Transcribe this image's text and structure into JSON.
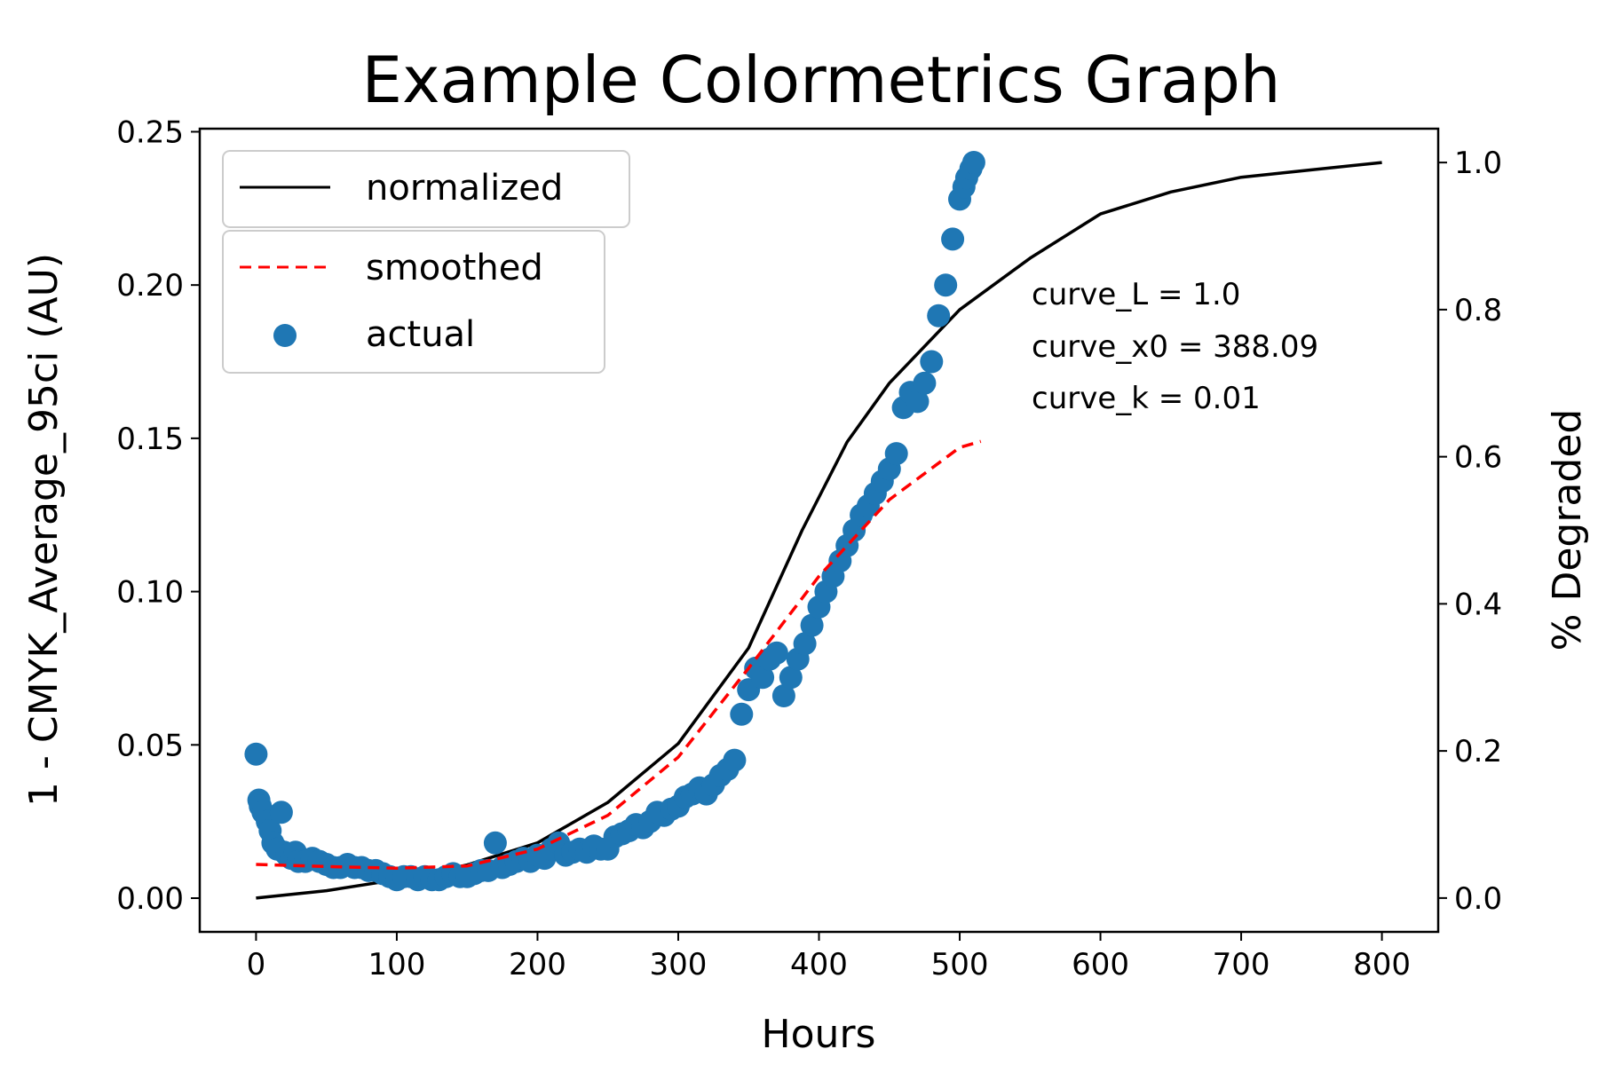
{
  "chart_data": {
    "type": "scatter",
    "title": "Example Colormetrics Graph",
    "xlabel": "Hours",
    "ylabel": "1 - CMYK_Average_95ci (AU)",
    "y2label": "% Degraded",
    "xlim": [
      -40,
      840
    ],
    "ylim": [
      -0.011,
      0.251
    ],
    "y2lim": [
      -0.046,
      1.046
    ],
    "xticks": [
      0,
      100,
      200,
      300,
      400,
      500,
      600,
      700,
      800
    ],
    "xtick_labels": [
      "0",
      "100",
      "200",
      "300",
      "400",
      "500",
      "600",
      "700",
      "800"
    ],
    "yticks": [
      0.0,
      0.05,
      0.1,
      0.15,
      0.2,
      0.25
    ],
    "ytick_labels": [
      "0.00",
      "0.05",
      "0.10",
      "0.15",
      "0.20",
      "0.25"
    ],
    "y2ticks": [
      0.0,
      0.2,
      0.4,
      0.6,
      0.8,
      1.0
    ],
    "y2tick_labels": [
      "0.0",
      "0.2",
      "0.4",
      "0.6",
      "0.8",
      "1.0"
    ],
    "grid": false,
    "colors": {
      "normalized": "#000000",
      "smoothed": "#ff0000",
      "actual": "#1f77b4"
    },
    "legend": {
      "placement": "upper-left",
      "entries": [
        "normalized",
        "smoothed",
        "actual"
      ]
    },
    "series": [
      {
        "name": "normalized",
        "style": "solid-line",
        "axis": "right",
        "x": [
          0,
          50,
          100,
          150,
          200,
          250,
          300,
          350,
          388,
          420,
          450,
          500,
          550,
          600,
          650,
          700,
          750,
          800
        ],
        "y": [
          0.0,
          0.01,
          0.025,
          0.045,
          0.075,
          0.13,
          0.21,
          0.34,
          0.5,
          0.62,
          0.7,
          0.8,
          0.87,
          0.93,
          0.96,
          0.98,
          0.99,
          1.0
        ]
      },
      {
        "name": "smoothed",
        "style": "dashed-line",
        "axis": "left",
        "x": [
          0,
          50,
          100,
          150,
          200,
          250,
          300,
          350,
          400,
          450,
          500,
          515
        ],
        "y": [
          0.011,
          0.0103,
          0.0098,
          0.0105,
          0.016,
          0.027,
          0.046,
          0.075,
          0.105,
          0.13,
          0.147,
          0.149
        ]
      },
      {
        "name": "actual",
        "style": "markers",
        "axis": "left",
        "x": [
          0,
          2,
          3,
          5,
          8,
          10,
          12,
          15,
          18,
          20,
          22,
          25,
          28,
          30,
          35,
          40,
          45,
          50,
          55,
          60,
          65,
          70,
          75,
          80,
          85,
          90,
          95,
          100,
          105,
          110,
          115,
          120,
          125,
          130,
          135,
          140,
          145,
          150,
          155,
          160,
          165,
          170,
          175,
          180,
          185,
          190,
          195,
          200,
          205,
          210,
          215,
          220,
          225,
          230,
          235,
          240,
          245,
          250,
          255,
          260,
          265,
          270,
          275,
          280,
          285,
          290,
          295,
          300,
          305,
          310,
          315,
          320,
          325,
          330,
          335,
          340,
          345,
          350,
          355,
          360,
          365,
          370,
          375,
          380,
          385,
          390,
          395,
          400,
          405,
          410,
          415,
          420,
          425,
          430,
          435,
          440,
          445,
          450,
          455,
          460,
          465,
          470,
          475,
          480,
          485,
          490,
          495,
          500,
          503,
          505,
          508,
          510
        ],
        "y": [
          0.047,
          0.032,
          0.03,
          0.028,
          0.025,
          0.022,
          0.018,
          0.016,
          0.028,
          0.015,
          0.014,
          0.013,
          0.015,
          0.012,
          0.012,
          0.013,
          0.012,
          0.011,
          0.01,
          0.01,
          0.011,
          0.01,
          0.01,
          0.009,
          0.009,
          0.008,
          0.007,
          0.006,
          0.007,
          0.007,
          0.006,
          0.007,
          0.006,
          0.006,
          0.007,
          0.008,
          0.007,
          0.007,
          0.008,
          0.009,
          0.009,
          0.018,
          0.01,
          0.011,
          0.012,
          0.013,
          0.012,
          0.014,
          0.013,
          0.016,
          0.018,
          0.014,
          0.015,
          0.016,
          0.015,
          0.017,
          0.016,
          0.016,
          0.02,
          0.021,
          0.022,
          0.024,
          0.023,
          0.025,
          0.028,
          0.027,
          0.029,
          0.03,
          0.033,
          0.034,
          0.036,
          0.034,
          0.037,
          0.04,
          0.042,
          0.045,
          0.06,
          0.068,
          0.075,
          0.072,
          0.078,
          0.08,
          0.066,
          0.072,
          0.078,
          0.083,
          0.089,
          0.095,
          0.1,
          0.105,
          0.11,
          0.115,
          0.12,
          0.125,
          0.128,
          0.132,
          0.136,
          0.14,
          0.145,
          0.16,
          0.165,
          0.162,
          0.168,
          0.175,
          0.19,
          0.2,
          0.215,
          0.228,
          0.232,
          0.235,
          0.238,
          0.24
        ]
      }
    ],
    "annotations": [
      "curve_L =  1.0",
      "curve_x0 = 388.09",
      "curve_k = 0.01"
    ]
  }
}
